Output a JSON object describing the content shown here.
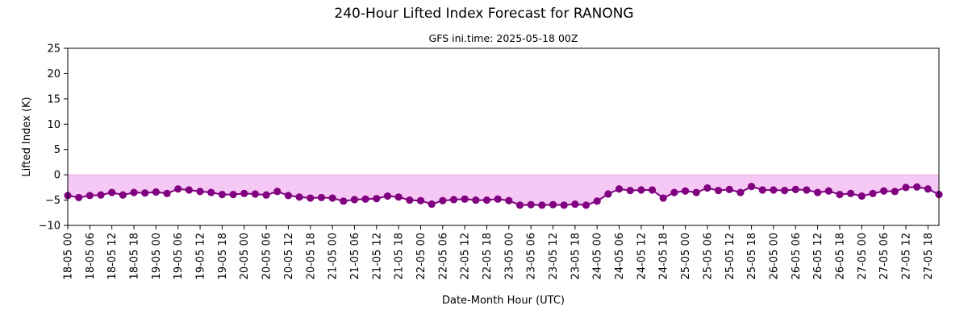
{
  "chart_data": {
    "type": "line",
    "title": "240-Hour Lifted Index Forecast for RANONG",
    "subtitle": "GFS ini.time: 2025-05-18 00Z",
    "xlabel": "Date-Month Hour (UTC)",
    "ylabel": "Lifted Index (K)",
    "ylim": [
      -10,
      25
    ],
    "yticks": [
      -10,
      -5,
      0,
      5,
      10,
      15,
      20,
      25
    ],
    "x_start": "2025-05-18 00Z",
    "x_step_hours": 3,
    "xticks": [
      "18-05 00",
      "18-05 06",
      "18-05 12",
      "18-05 18",
      "19-05 00",
      "19-05 06",
      "19-05 12",
      "19-05 18",
      "20-05 00",
      "20-05 06",
      "20-05 12",
      "20-05 18",
      "21-05 00",
      "21-05 06",
      "21-05 12",
      "21-05 18",
      "22-05 00",
      "22-05 06",
      "22-05 12",
      "22-05 18",
      "23-05 00",
      "23-05 06",
      "23-05 12",
      "23-05 18",
      "24-05 00",
      "24-05 06",
      "24-05 12",
      "24-05 18",
      "25-05 00",
      "25-05 06",
      "25-05 12",
      "25-05 18",
      "26-05 00",
      "26-05 06",
      "26-05 12",
      "26-05 18",
      "27-05 00",
      "27-05 06",
      "27-05 12",
      "27-05 18"
    ],
    "line_color": "#800080",
    "fill_color": "#f5c8f5",
    "grid": false,
    "series": [
      {
        "values": [
          -4.1,
          -4.5,
          -4.1,
          -4.0,
          -3.5,
          -4.0,
          -3.5,
          -3.6,
          -3.4,
          -3.7,
          -2.8,
          -3.0,
          -3.3,
          -3.5,
          -3.9,
          -3.9,
          -3.7,
          -3.8,
          -4.0,
          -3.3,
          -4.1,
          -4.4,
          -4.6,
          -4.5,
          -4.6,
          -5.2,
          -4.9,
          -4.8,
          -4.7,
          -4.2,
          -4.4,
          -5.0,
          -5.1,
          -5.8,
          -5.1,
          -4.9,
          -4.8,
          -5.0,
          -5.0,
          -4.8,
          -5.1,
          -6.0,
          -5.9,
          -6.0,
          -5.9,
          -6.0,
          -5.8,
          -6.0,
          -5.2,
          -3.8,
          -2.8,
          -3.1,
          -3.0,
          -3.0,
          -4.6,
          -3.5,
          -3.2,
          -3.5,
          -2.6,
          -3.1,
          -2.9,
          -3.5,
          -2.3,
          -3.0,
          -3.0,
          -3.1,
          -2.9,
          -3.0,
          -3.5,
          -3.2,
          -3.9,
          -3.7,
          -4.2,
          -3.7,
          -3.2,
          -3.3,
          -2.5,
          -2.4,
          -2.8,
          -3.9
        ]
      }
    ]
  }
}
